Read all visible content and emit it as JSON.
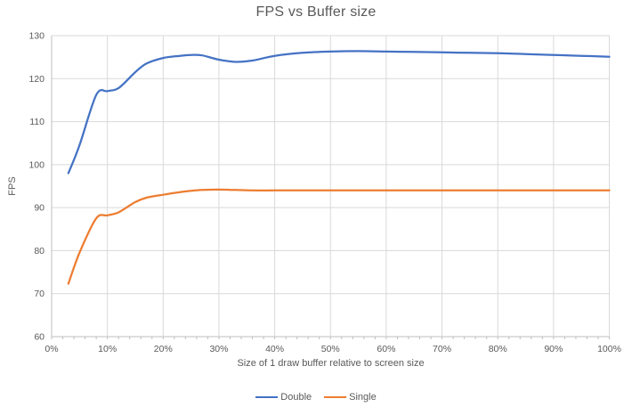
{
  "chart_data": {
    "type": "line",
    "title": "FPS vs Buffer size",
    "xlabel": "Size of 1 draw buffer relative to screen size",
    "ylabel": "FPS",
    "xlim": [
      0,
      100
    ],
    "ylim": [
      60,
      130
    ],
    "x_tick_values": [
      0,
      10,
      20,
      30,
      40,
      50,
      60,
      70,
      80,
      90,
      100
    ],
    "x_tick_labels": [
      "0%",
      "10%",
      "20%",
      "30%",
      "40%",
      "50%",
      "60%",
      "70%",
      "80%",
      "90%",
      "100%"
    ],
    "x_minor_tick_step": 2,
    "y_tick_values": [
      60,
      70,
      80,
      90,
      100,
      110,
      120,
      130
    ],
    "y_tick_labels": [
      "60",
      "70",
      "80",
      "90",
      "100",
      "110",
      "120",
      "130"
    ],
    "grid": true,
    "line_style": "smooth",
    "legend_position": "bottom",
    "x_percent": [
      3,
      5,
      8,
      10,
      12,
      15,
      17,
      20,
      23,
      25,
      27,
      30,
      33,
      36,
      40,
      45,
      50,
      55,
      60,
      65,
      70,
      75,
      80,
      85,
      90,
      95,
      100
    ],
    "series": [
      {
        "name": "Double",
        "color": "#4472C4",
        "values": [
          98,
          104.5,
          116.2,
          117.1,
          117.8,
          121.5,
          123.5,
          124.8,
          125.3,
          125.5,
          125.4,
          124.4,
          123.9,
          124.2,
          125.3,
          126.0,
          126.3,
          126.4,
          126.3,
          126.2,
          126.1,
          126.0,
          125.9,
          125.7,
          125.5,
          125.3,
          125.1
        ]
      },
      {
        "name": "Single",
        "color": "#ED7D31",
        "values": [
          72.3,
          79.5,
          87.5,
          88.2,
          88.9,
          91.3,
          92.3,
          93.0,
          93.6,
          93.9,
          94.1,
          94.2,
          94.1,
          94.0,
          94.0,
          94.0,
          94.0,
          94.0,
          94.0,
          94.0,
          94.0,
          94.0,
          94.0,
          94.0,
          94.0,
          94.0,
          94.0
        ]
      }
    ]
  },
  "colors": {
    "background": "#FFFFFF",
    "gridline": "#D9D9D9",
    "axis_line": "#BFBFBF",
    "text": "#595959",
    "series_double": "#4472C4",
    "series_single": "#ED7D31"
  }
}
